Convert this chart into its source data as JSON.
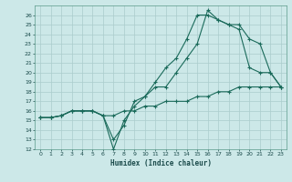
{
  "xlabel": "Humidex (Indice chaleur)",
  "bg_color": "#cce8e8",
  "grid_color": "#aacccc",
  "line_color": "#1a6a5a",
  "xlim": [
    -0.5,
    23.5
  ],
  "ylim": [
    12,
    27
  ],
  "xticks": [
    0,
    1,
    2,
    3,
    4,
    5,
    6,
    7,
    8,
    9,
    10,
    11,
    12,
    13,
    14,
    15,
    16,
    17,
    18,
    19,
    20,
    21,
    22,
    23
  ],
  "yticks": [
    12,
    13,
    14,
    15,
    16,
    17,
    18,
    19,
    20,
    21,
    22,
    23,
    24,
    25,
    26
  ],
  "line1_x": [
    0,
    1,
    2,
    3,
    4,
    5,
    6,
    7,
    8,
    9,
    10,
    11,
    12,
    13,
    14,
    15,
    16,
    17,
    18,
    19,
    20,
    21,
    22,
    23
  ],
  "line1_y": [
    15.3,
    15.3,
    15.5,
    16,
    16,
    16,
    15.5,
    13,
    14.5,
    17,
    17.5,
    19,
    20.5,
    21.5,
    23.5,
    26,
    26,
    25.5,
    25,
    24.5,
    20.5,
    20,
    20,
    18.5
  ],
  "line2_x": [
    0,
    1,
    2,
    3,
    4,
    5,
    6,
    7,
    8,
    9,
    10,
    11,
    12,
    13,
    14,
    15,
    16,
    17,
    18,
    19,
    20,
    21,
    22,
    23
  ],
  "line2_y": [
    15.3,
    15.3,
    15.5,
    16,
    16,
    16,
    15.5,
    12,
    15,
    16.5,
    17.5,
    18.5,
    18.5,
    20,
    21.5,
    23,
    26.5,
    25.5,
    25,
    25,
    23.5,
    23,
    20,
    18.5
  ],
  "line3_x": [
    0,
    1,
    2,
    3,
    4,
    5,
    6,
    7,
    8,
    9,
    10,
    11,
    12,
    13,
    14,
    15,
    16,
    17,
    18,
    19,
    20,
    21,
    22,
    23
  ],
  "line3_y": [
    15.3,
    15.3,
    15.5,
    16,
    16,
    16,
    15.5,
    15.5,
    16,
    16,
    16.5,
    16.5,
    17,
    17,
    17,
    17.5,
    17.5,
    18,
    18,
    18.5,
    18.5,
    18.5,
    18.5,
    18.5
  ]
}
